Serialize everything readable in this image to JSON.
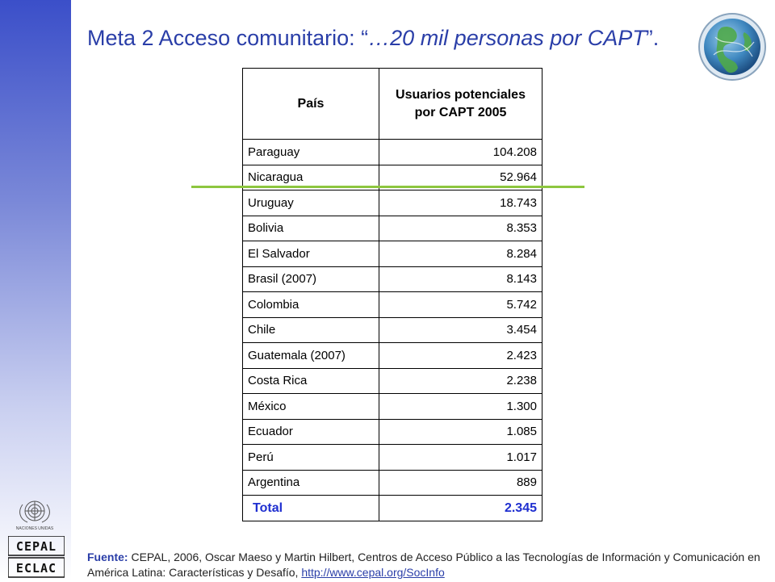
{
  "slide": {
    "title_plain": "Meta 2 Acceso comunitario: “",
    "title_italic": "…20 mil personas por CAPT",
    "title_end": "”."
  },
  "table": {
    "header_country": "País",
    "header_users": "Usuarios potenciales por CAPT 2005",
    "rows": [
      {
        "country": "Paraguay",
        "value": "104.208"
      },
      {
        "country": "Nicaragua",
        "value": "52.964"
      },
      {
        "country": "Uruguay",
        "value": "18.743"
      },
      {
        "country": "Bolivia",
        "value": "8.353"
      },
      {
        "country": "El Salvador",
        "value": "8.284"
      },
      {
        "country": "Brasil (2007)",
        "value": "8.143"
      },
      {
        "country": "Colombia",
        "value": "5.742"
      },
      {
        "country": "Chile",
        "value": "3.454"
      },
      {
        "country": "Guatemala (2007)",
        "value": "2.423"
      },
      {
        "country": "Costa Rica",
        "value": "2.238"
      },
      {
        "country": "México",
        "value": "1.300"
      },
      {
        "country": "Ecuador",
        "value": "1.085"
      },
      {
        "country": "Perú",
        "value": "1.017"
      },
      {
        "country": "Argentina",
        "value": "889"
      }
    ],
    "total_label": "Total",
    "total_value": "2.345"
  },
  "footer": {
    "source_label": "Fuente:",
    "source_text": " CEPAL, 2006, Oscar Maeso y Martin Hilbert, Centros de Acceso Público a las Tecnologías de Información y Comunicación en América Latina: Características y Desafío, ",
    "link_text": "http://www.cepal.org/SocInfo"
  },
  "logos": {
    "un_caption": "NACIONES UNIDAS",
    "cepal_top": "CEPAL",
    "cepal_bottom": "ECLAC"
  },
  "colors": {
    "title": "#2a3ea8",
    "total": "#1f2fd0",
    "divider": "#8dc63f"
  }
}
